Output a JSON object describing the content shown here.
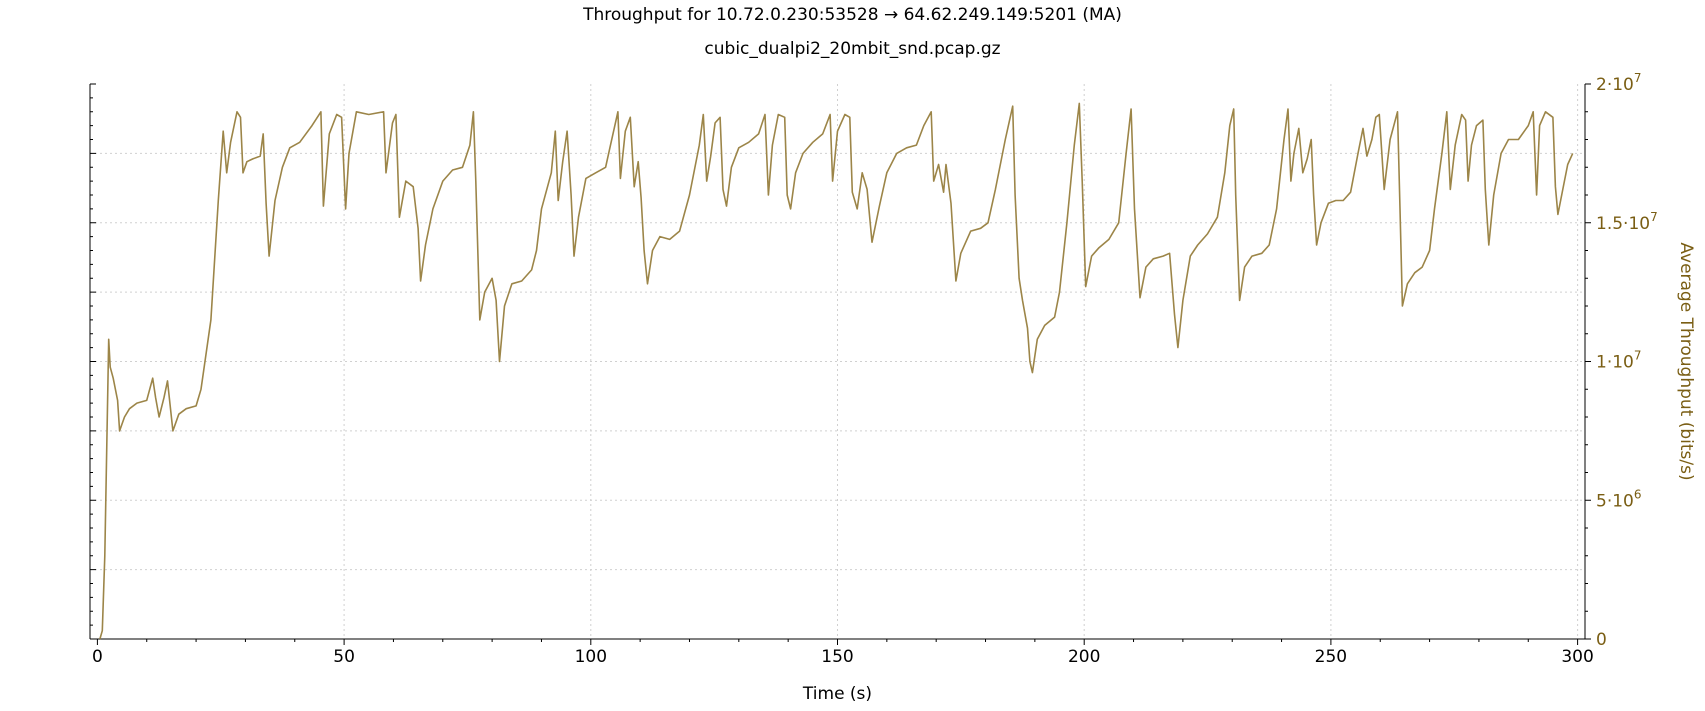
{
  "chart_data": {
    "type": "line",
    "title": "Throughput for 10.72.0.230:53528 → 64.62.249.149:5201 (MA)",
    "subtitle": "cubic_dualpi2_20mbit_snd.pcap.gz",
    "xlabel": "Time (s)",
    "ylabel": "Average Throughput (bits/s)",
    "xlim": [
      -1.5,
      301.5
    ],
    "ylim": [
      0,
      20000000
    ],
    "x_ticks": [
      0,
      50,
      100,
      150,
      200,
      250,
      300
    ],
    "x_tick_labels": [
      "0",
      "50",
      "100",
      "150",
      "200",
      "250",
      "300"
    ],
    "y_ticks": [
      {
        "value": 0,
        "base": "0",
        "exp": ""
      },
      {
        "value": 5000000,
        "base": "5·10",
        "exp": "6"
      },
      {
        "value": 10000000,
        "base": "1·10",
        "exp": "7"
      },
      {
        "value": 15000000,
        "base": "1.5·10",
        "exp": "7"
      },
      {
        "value": 20000000,
        "base": "2·10",
        "exp": "7"
      }
    ],
    "grid": true,
    "colors": {
      "series": "#9c8548",
      "axis_label": "#7a5e14",
      "grid": "#d0d0d0"
    },
    "series": [
      {
        "color": "#9c8548",
        "points": [
          [
            0.5,
            0
          ],
          [
            1.0,
            300000
          ],
          [
            1.5,
            3000000
          ],
          [
            2.0,
            8000000
          ],
          [
            2.3,
            10800000
          ],
          [
            2.6,
            9800000
          ],
          [
            3.2,
            9400000
          ],
          [
            4.1,
            8600000
          ],
          [
            4.5,
            7500000
          ],
          [
            5.5,
            8000000
          ],
          [
            6.5,
            8300000
          ],
          [
            8,
            8500000
          ],
          [
            10,
            8600000
          ],
          [
            11.2,
            9400000
          ],
          [
            11.8,
            8700000
          ],
          [
            12.5,
            8000000
          ],
          [
            13.5,
            8700000
          ],
          [
            14.2,
            9300000
          ],
          [
            15.3,
            7500000
          ],
          [
            16.5,
            8100000
          ],
          [
            18,
            8300000
          ],
          [
            20,
            8400000
          ],
          [
            21,
            9000000
          ],
          [
            23,
            11500000
          ],
          [
            24.5,
            15800000
          ],
          [
            25.5,
            18300000
          ],
          [
            26.2,
            16800000
          ],
          [
            27,
            17900000
          ],
          [
            28.3,
            19000000
          ],
          [
            29,
            18800000
          ],
          [
            29.5,
            16800000
          ],
          [
            30.3,
            17200000
          ],
          [
            31.5,
            17300000
          ],
          [
            33,
            17400000
          ],
          [
            33.6,
            18200000
          ],
          [
            34.2,
            15700000
          ],
          [
            34.8,
            13800000
          ],
          [
            36,
            15800000
          ],
          [
            37.5,
            17000000
          ],
          [
            39,
            17700000
          ],
          [
            41,
            17900000
          ],
          [
            43.5,
            18500000
          ],
          [
            45.3,
            19000000
          ],
          [
            45.8,
            15600000
          ],
          [
            47,
            18200000
          ],
          [
            48.5,
            18900000
          ],
          [
            49.5,
            18800000
          ],
          [
            50.3,
            15500000
          ],
          [
            51,
            17500000
          ],
          [
            52.5,
            19000000
          ],
          [
            55,
            18900000
          ],
          [
            58,
            19000000
          ],
          [
            58.5,
            16800000
          ],
          [
            59.8,
            18600000
          ],
          [
            60.5,
            18900000
          ],
          [
            61.2,
            15200000
          ],
          [
            62.5,
            16500000
          ],
          [
            64,
            16300000
          ],
          [
            65,
            14800000
          ],
          [
            65.5,
            12900000
          ],
          [
            66.5,
            14200000
          ],
          [
            68,
            15500000
          ],
          [
            70,
            16500000
          ],
          [
            72,
            16900000
          ],
          [
            74,
            17000000
          ],
          [
            75.5,
            17800000
          ],
          [
            76.2,
            19000000
          ],
          [
            76.7,
            16500000
          ],
          [
            77.5,
            11500000
          ],
          [
            78.5,
            12500000
          ],
          [
            80,
            13000000
          ],
          [
            80.8,
            12200000
          ],
          [
            81.5,
            10000000
          ],
          [
            82.5,
            12000000
          ],
          [
            84,
            12800000
          ],
          [
            86,
            12900000
          ],
          [
            88,
            13300000
          ],
          [
            89,
            14000000
          ],
          [
            90,
            15500000
          ],
          [
            92,
            16800000
          ],
          [
            92.8,
            18300000
          ],
          [
            93.4,
            15800000
          ],
          [
            94.3,
            17200000
          ],
          [
            95.2,
            18300000
          ],
          [
            96,
            16000000
          ],
          [
            96.6,
            13800000
          ],
          [
            97.5,
            15200000
          ],
          [
            99,
            16600000
          ],
          [
            101,
            16800000
          ],
          [
            103,
            17000000
          ],
          [
            104,
            17800000
          ],
          [
            105.5,
            19000000
          ],
          [
            106,
            16600000
          ],
          [
            107,
            18300000
          ],
          [
            108,
            18800000
          ],
          [
            108.8,
            16300000
          ],
          [
            109.6,
            17200000
          ],
          [
            110.2,
            15900000
          ],
          [
            110.8,
            14000000
          ],
          [
            111.5,
            12800000
          ],
          [
            112.5,
            14000000
          ],
          [
            114,
            14500000
          ],
          [
            116,
            14400000
          ],
          [
            118,
            14700000
          ],
          [
            120,
            16000000
          ],
          [
            122,
            17800000
          ],
          [
            122.8,
            18900000
          ],
          [
            123.5,
            16500000
          ],
          [
            124.3,
            17400000
          ],
          [
            125.2,
            18600000
          ],
          [
            126.2,
            18800000
          ],
          [
            126.8,
            16200000
          ],
          [
            127.5,
            15600000
          ],
          [
            128.5,
            17000000
          ],
          [
            130,
            17700000
          ],
          [
            132,
            17900000
          ],
          [
            134,
            18200000
          ],
          [
            135.3,
            18900000
          ],
          [
            136,
            16000000
          ],
          [
            136.8,
            17800000
          ],
          [
            138,
            18900000
          ],
          [
            139.3,
            18800000
          ],
          [
            139.8,
            16000000
          ],
          [
            140.5,
            15500000
          ],
          [
            141.5,
            16800000
          ],
          [
            143,
            17500000
          ],
          [
            145,
            17900000
          ],
          [
            147,
            18200000
          ],
          [
            148.5,
            18900000
          ],
          [
            149,
            16500000
          ],
          [
            150,
            18300000
          ],
          [
            151.5,
            18900000
          ],
          [
            152.5,
            18800000
          ],
          [
            153,
            16100000
          ],
          [
            154,
            15500000
          ],
          [
            155,
            16800000
          ],
          [
            156,
            16200000
          ],
          [
            157,
            14300000
          ],
          [
            158.5,
            15600000
          ],
          [
            160,
            16800000
          ],
          [
            162,
            17500000
          ],
          [
            164,
            17700000
          ],
          [
            166,
            17800000
          ],
          [
            167.5,
            18500000
          ],
          [
            169,
            19000000
          ],
          [
            169.5,
            16500000
          ],
          [
            170.5,
            17100000
          ],
          [
            171.5,
            16100000
          ],
          [
            172,
            17100000
          ],
          [
            173,
            15700000
          ],
          [
            174,
            12900000
          ],
          [
            175,
            13900000
          ],
          [
            177,
            14700000
          ],
          [
            179,
            14800000
          ],
          [
            180.5,
            15000000
          ],
          [
            182,
            16200000
          ],
          [
            184,
            18000000
          ],
          [
            185.5,
            19200000
          ],
          [
            186,
            16000000
          ],
          [
            186.8,
            13000000
          ],
          [
            187.5,
            12200000
          ],
          [
            188.5,
            11200000
          ],
          [
            189,
            10000000
          ],
          [
            189.5,
            9600000
          ],
          [
            190.5,
            10800000
          ],
          [
            192,
            11300000
          ],
          [
            194,
            11600000
          ],
          [
            195,
            12500000
          ],
          [
            196.5,
            15000000
          ],
          [
            198,
            17800000
          ],
          [
            199,
            19300000
          ],
          [
            199.6,
            16500000
          ],
          [
            200.3,
            12700000
          ],
          [
            201.5,
            13800000
          ],
          [
            203,
            14100000
          ],
          [
            205,
            14400000
          ],
          [
            207,
            15000000
          ],
          [
            208.5,
            17500000
          ],
          [
            209.5,
            19100000
          ],
          [
            210.2,
            15500000
          ],
          [
            211.3,
            12300000
          ],
          [
            212.5,
            13400000
          ],
          [
            214,
            13700000
          ],
          [
            216,
            13800000
          ],
          [
            217.3,
            13900000
          ],
          [
            218.3,
            11700000
          ],
          [
            219,
            10500000
          ],
          [
            220,
            12200000
          ],
          [
            221.5,
            13800000
          ],
          [
            223,
            14200000
          ],
          [
            225,
            14600000
          ],
          [
            227,
            15200000
          ],
          [
            228.5,
            16800000
          ],
          [
            229.5,
            18500000
          ],
          [
            230.3,
            19100000
          ],
          [
            230.7,
            16000000
          ],
          [
            231.5,
            12200000
          ],
          [
            232.5,
            13400000
          ],
          [
            234,
            13800000
          ],
          [
            236,
            13900000
          ],
          [
            237.5,
            14200000
          ],
          [
            239,
            15500000
          ],
          [
            240.5,
            18000000
          ],
          [
            241.3,
            19100000
          ],
          [
            241.9,
            16500000
          ],
          [
            242.5,
            17500000
          ],
          [
            243.5,
            18400000
          ],
          [
            244.3,
            16800000
          ],
          [
            245.2,
            17300000
          ],
          [
            246,
            18000000
          ],
          [
            246.5,
            16000000
          ],
          [
            247.1,
            14200000
          ],
          [
            248,
            15000000
          ],
          [
            249.5,
            15700000
          ],
          [
            251,
            15800000
          ],
          [
            252.5,
            15800000
          ],
          [
            254,
            16100000
          ],
          [
            255.5,
            17500000
          ],
          [
            256.5,
            18400000
          ],
          [
            257.3,
            17400000
          ],
          [
            258.3,
            18000000
          ],
          [
            259.1,
            18800000
          ],
          [
            259.8,
            18900000
          ],
          [
            260.8,
            16200000
          ],
          [
            262,
            18000000
          ],
          [
            263.5,
            19000000
          ],
          [
            264,
            15500000
          ],
          [
            264.5,
            12000000
          ],
          [
            265.5,
            12800000
          ],
          [
            267,
            13200000
          ],
          [
            268.5,
            13400000
          ],
          [
            270,
            14000000
          ],
          [
            271,
            15500000
          ],
          [
            272.5,
            17500000
          ],
          [
            273.5,
            19000000
          ],
          [
            274.2,
            16200000
          ],
          [
            275.2,
            17800000
          ],
          [
            276.5,
            18900000
          ],
          [
            277.3,
            18700000
          ],
          [
            277.8,
            16500000
          ],
          [
            278.5,
            17800000
          ],
          [
            279.5,
            18500000
          ],
          [
            280.8,
            18700000
          ],
          [
            281.3,
            16200000
          ],
          [
            282,
            14200000
          ],
          [
            283,
            16000000
          ],
          [
            284.5,
            17500000
          ],
          [
            286,
            18000000
          ],
          [
            288,
            18000000
          ],
          [
            290,
            18500000
          ],
          [
            291,
            19000000
          ],
          [
            291.7,
            16000000
          ],
          [
            292.3,
            18500000
          ],
          [
            293.5,
            19000000
          ],
          [
            295,
            18800000
          ],
          [
            295.5,
            16300000
          ],
          [
            296,
            15300000
          ],
          [
            297,
            16200000
          ],
          [
            298,
            17100000
          ],
          [
            299,
            17500000
          ]
        ]
      }
    ]
  }
}
